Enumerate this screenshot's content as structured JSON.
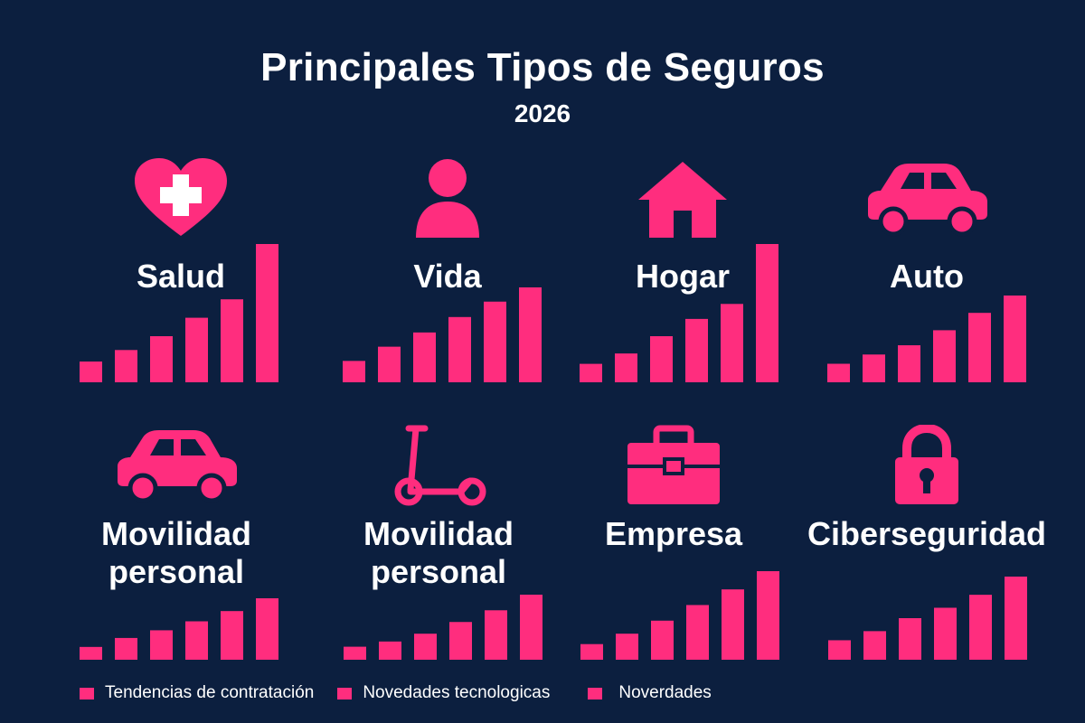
{
  "title": "Principales Tipos de Seguros",
  "subtitle": "2026",
  "colors": {
    "background": "#0c1f3f",
    "accent": "#ff2d7e",
    "text": "#ffffff"
  },
  "legend": [
    "Tendencias de contratación",
    "Novedades tecnologicas",
    "Noverdades"
  ],
  "chart_data": [
    {
      "type": "bar",
      "label": "Salud",
      "icon": "heart-cross-icon",
      "values": [
        18,
        28,
        40,
        56,
        72,
        120
      ]
    },
    {
      "type": "bar",
      "label": "Vida",
      "icon": "person-icon",
      "values": [
        18,
        30,
        42,
        55,
        68,
        80
      ]
    },
    {
      "type": "bar",
      "label": "Hogar",
      "icon": "house-icon",
      "values": [
        16,
        25,
        40,
        55,
        68,
        120
      ]
    },
    {
      "type": "bar",
      "label": "Auto",
      "icon": "car-icon",
      "values": [
        16,
        24,
        32,
        45,
        60,
        75
      ]
    },
    {
      "type": "bar",
      "label": "Movilidad personal",
      "icon": "car-icon",
      "values": [
        10,
        17,
        23,
        30,
        38,
        48
      ]
    },
    {
      "type": "bar",
      "label": "Movilidad personal",
      "icon": "scooter-icon",
      "values": [
        10,
        14,
        20,
        29,
        38,
        50
      ]
    },
    {
      "type": "bar",
      "label": "Empresa",
      "icon": "briefcase-icon",
      "values": [
        12,
        20,
        30,
        42,
        54,
        68
      ]
    },
    {
      "type": "bar",
      "label": "Ciberseguridad",
      "icon": "padlock-icon",
      "values": [
        15,
        22,
        32,
        40,
        50,
        64
      ]
    }
  ]
}
